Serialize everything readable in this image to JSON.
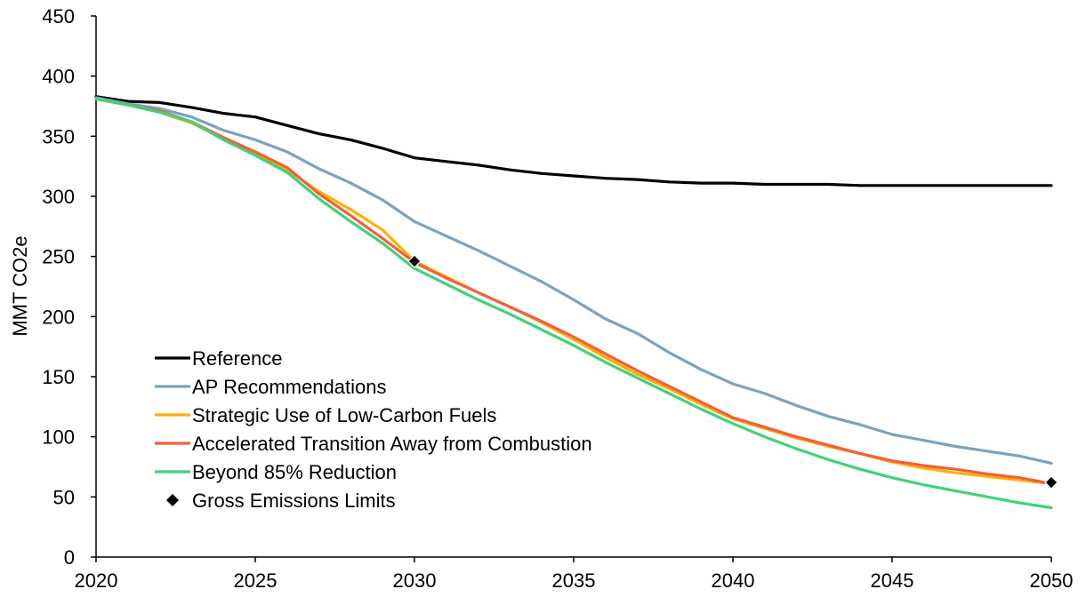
{
  "chart_data": {
    "type": "line",
    "title": "",
    "xlabel": "",
    "ylabel": "MMT CO2e",
    "xlim": [
      2020,
      2050
    ],
    "ylim": [
      0,
      450
    ],
    "x_ticks": [
      2020,
      2025,
      2030,
      2035,
      2040,
      2045,
      2050
    ],
    "y_ticks": [
      0,
      50,
      100,
      150,
      200,
      250,
      300,
      350,
      400,
      450
    ],
    "grid": false,
    "legend_position": "bottom-left",
    "series": [
      {
        "name": "Reference",
        "color": "#000000",
        "x": [
          2020,
          2021,
          2022,
          2023,
          2024,
          2025,
          2026,
          2027,
          2028,
          2029,
          2030,
          2031,
          2032,
          2033,
          2034,
          2035,
          2036,
          2037,
          2038,
          2039,
          2040,
          2041,
          2042,
          2043,
          2044,
          2045,
          2046,
          2047,
          2048,
          2049,
          2050
        ],
        "y": [
          383,
          379,
          378,
          374,
          369,
          366,
          359,
          352,
          347,
          340,
          332,
          329,
          326,
          322,
          319,
          317,
          315,
          314,
          312,
          311,
          311,
          310,
          310,
          310,
          309,
          309,
          309,
          309,
          309,
          309,
          309
        ]
      },
      {
        "name": "AP Recommendations",
        "color": "#7ba3bd",
        "x": [
          2020,
          2021,
          2022,
          2023,
          2024,
          2025,
          2026,
          2027,
          2028,
          2029,
          2030,
          2031,
          2032,
          2033,
          2034,
          2035,
          2036,
          2037,
          2038,
          2039,
          2040,
          2041,
          2042,
          2043,
          2044,
          2045,
          2046,
          2047,
          2048,
          2049,
          2050
        ],
        "y": [
          382,
          377,
          373,
          366,
          355,
          347,
          337,
          323,
          311,
          297,
          279,
          267,
          255,
          242,
          229,
          214,
          198,
          186,
          170,
          156,
          144,
          136,
          126,
          117,
          110,
          102,
          97,
          92,
          88,
          84,
          78
        ]
      },
      {
        "name": "Strategic Use of Low-Carbon Fuels",
        "color": "#ffb000",
        "x": [
          2020,
          2021,
          2022,
          2023,
          2024,
          2025,
          2026,
          2027,
          2028,
          2029,
          2030,
          2031,
          2032,
          2033,
          2034,
          2035,
          2036,
          2037,
          2038,
          2039,
          2040,
          2041,
          2042,
          2043,
          2044,
          2045,
          2046,
          2047,
          2048,
          2049,
          2050
        ],
        "y": [
          381,
          376,
          370,
          361,
          348,
          336,
          322,
          304,
          289,
          272,
          246,
          233,
          220,
          208,
          195,
          181,
          166,
          152,
          140,
          127,
          115,
          107,
          99,
          92,
          86,
          79,
          74,
          70,
          67,
          64,
          61
        ]
      },
      {
        "name": "Accelerated Transition Away from Combustion",
        "color": "#f2603c",
        "x": [
          2020,
          2021,
          2022,
          2023,
          2024,
          2025,
          2026,
          2027,
          2028,
          2029,
          2030,
          2031,
          2032,
          2033,
          2034,
          2035,
          2036,
          2037,
          2038,
          2039,
          2040,
          2041,
          2042,
          2043,
          2044,
          2045,
          2046,
          2047,
          2048,
          2049,
          2050
        ],
        "y": [
          381,
          376,
          371,
          362,
          349,
          337,
          324,
          302,
          284,
          265,
          245,
          232,
          220,
          208,
          196,
          183,
          169,
          155,
          142,
          129,
          116,
          108,
          100,
          93,
          86,
          80,
          76,
          73,
          69,
          66,
          61
        ]
      },
      {
        "name": "Beyond 85% Reduction",
        "color": "#3fd27a",
        "x": [
          2020,
          2021,
          2022,
          2023,
          2024,
          2025,
          2026,
          2027,
          2028,
          2029,
          2030,
          2031,
          2032,
          2033,
          2034,
          2035,
          2036,
          2037,
          2038,
          2039,
          2040,
          2041,
          2042,
          2043,
          2044,
          2045,
          2046,
          2047,
          2048,
          2049,
          2050
        ],
        "y": [
          381,
          376,
          370,
          362,
          347,
          334,
          320,
          298,
          279,
          261,
          240,
          227,
          214,
          202,
          189,
          176,
          162,
          149,
          136,
          123,
          111,
          100,
          90,
          81,
          73,
          66,
          60,
          55,
          50,
          45,
          41
        ]
      }
    ],
    "markers": {
      "name": "Gross Emissions Limits",
      "color": "#000000",
      "shape": "diamond",
      "points": [
        {
          "x": 2030,
          "y": 246
        },
        {
          "x": 2050,
          "y": 62
        }
      ]
    }
  }
}
